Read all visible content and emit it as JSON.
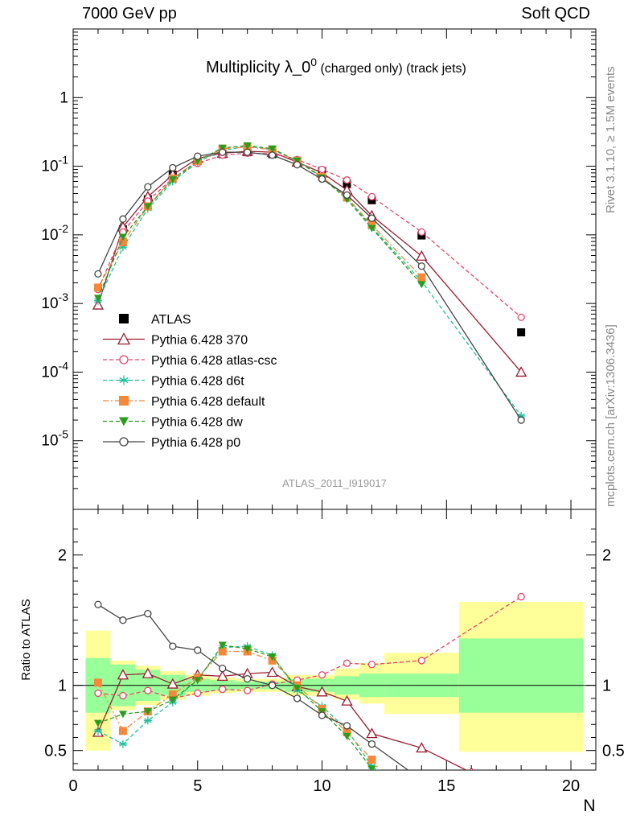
{
  "header": {
    "left": "7000 GeV pp",
    "right": "Soft QCD"
  },
  "side_labels": {
    "rivet": "Rivet 3.1.10, ≥ 1.5M events",
    "mcplots": "mcplots.cern.ch [arXiv:1306.3436]"
  },
  "chart_data": [
    {
      "panel": "main",
      "type": "line",
      "title_main": "Multiplicity λ_0",
      "title_sup": "0",
      "title_extra": " (charged only) (track jets)",
      "analysis_label": "ATLAS_2011_I919017",
      "y_scale": "log",
      "ylim": [
        1e-06,
        10
      ],
      "xlim": [
        0,
        21
      ],
      "y_ticks": [
        {
          "base": "10",
          "exp": "-5",
          "value": 1e-05
        },
        {
          "base": "10",
          "exp": "-4",
          "value": 0.0001
        },
        {
          "base": "10",
          "exp": "-3",
          "value": 0.001
        },
        {
          "base": "10",
          "exp": "-2",
          "value": 0.01
        },
        {
          "base": "10",
          "exp": "-1",
          "value": 0.1
        },
        {
          "base": "1",
          "exp": "",
          "value": 1
        }
      ],
      "legend_position": "lower-left",
      "series": [
        {
          "name": "ATLAS",
          "color": "#000000",
          "marker": "square",
          "line": "none",
          "x": [
            1,
            2,
            3,
            4,
            5,
            6,
            7,
            8,
            9,
            10,
            11,
            12,
            14,
            18
          ],
          "y": [
            0.0017,
            0.012,
            0.033,
            0.075,
            0.12,
            0.15,
            0.16,
            0.15,
            0.12,
            0.085,
            0.055,
            0.032,
            0.0098,
            0.00038
          ]
        },
        {
          "name": "Pythia 6.428 370",
          "color": "#9b1b30",
          "marker": "triangle-open",
          "line": "solid",
          "x": [
            1,
            2,
            3,
            4,
            5,
            6,
            7,
            8,
            9,
            10,
            11,
            12,
            14,
            18
          ],
          "y": [
            0.00095,
            0.013,
            0.036,
            0.075,
            0.13,
            0.155,
            0.165,
            0.16,
            0.115,
            0.08,
            0.045,
            0.019,
            0.0049,
            0.0001
          ]
        },
        {
          "name": "Pythia 6.428 atlas-csc",
          "color": "#e8456d",
          "marker": "circle-open",
          "line": "dashed",
          "x": [
            1,
            2,
            3,
            4,
            5,
            6,
            7,
            8,
            9,
            10,
            11,
            12,
            14,
            18
          ],
          "y": [
            0.0016,
            0.011,
            0.031,
            0.067,
            0.11,
            0.145,
            0.155,
            0.152,
            0.125,
            0.09,
            0.063,
            0.036,
            0.011,
            0.00063
          ]
        },
        {
          "name": "Pythia 6.428 d6t",
          "color": "#1fbf9f",
          "marker": "asterisk",
          "line": "dashed",
          "x": [
            1,
            2,
            3,
            4,
            5,
            6,
            7,
            8,
            9,
            10,
            11,
            12,
            14,
            18
          ],
          "y": [
            0.0011,
            0.0066,
            0.024,
            0.06,
            0.115,
            0.17,
            0.195,
            0.175,
            0.12,
            0.07,
            0.035,
            0.013,
            0.0021,
            2.3e-05
          ]
        },
        {
          "name": "Pythia 6.428 default",
          "color": "#f5883a",
          "marker": "square",
          "line": "dashdot",
          "x": [
            1,
            2,
            3,
            4,
            5,
            6,
            7,
            8,
            9,
            10,
            11,
            12,
            14
          ],
          "y": [
            0.0017,
            0.0078,
            0.026,
            0.066,
            0.12,
            0.18,
            0.19,
            0.175,
            0.12,
            0.07,
            0.035,
            0.014,
            0.0024
          ]
        },
        {
          "name": "Pythia 6.428 dw",
          "color": "#2a9d1f",
          "marker": "triangle-down",
          "line": "dashed",
          "x": [
            1,
            2,
            3,
            4,
            5,
            6,
            7,
            8,
            9,
            10,
            11,
            12,
            14
          ],
          "y": [
            0.0012,
            0.0093,
            0.026,
            0.064,
            0.12,
            0.185,
            0.2,
            0.18,
            0.12,
            0.068,
            0.033,
            0.0125,
            0.0019
          ]
        },
        {
          "name": "Pythia 6.428 p0",
          "color": "#444444",
          "marker": "circle-open",
          "line": "solid",
          "x": [
            1,
            2,
            3,
            4,
            5,
            6,
            7,
            8,
            9,
            10,
            11,
            12,
            14,
            18
          ],
          "y": [
            0.0027,
            0.017,
            0.05,
            0.095,
            0.14,
            0.16,
            0.16,
            0.145,
            0.105,
            0.065,
            0.038,
            0.0175,
            0.0035,
            2e-05
          ]
        }
      ]
    },
    {
      "panel": "ratio",
      "type": "line",
      "ylabel": "Ratio to ATLAS",
      "xlabel": "N",
      "ylim": [
        0.35,
        2.35
      ],
      "xlim": [
        0,
        21
      ],
      "x_ticks": [
        0,
        5,
        10,
        15,
        20
      ],
      "y_ticks": [
        0.5,
        1,
        2
      ],
      "bands": {
        "x_low": [
          0.5,
          1.5,
          2.5,
          3.5,
          4.5,
          5.5,
          6.5,
          7.5,
          8.5,
          9.5,
          10.5,
          11.5,
          12.5,
          15.5
        ],
        "x_high": [
          1.5,
          2.5,
          3.5,
          4.5,
          5.5,
          6.5,
          7.5,
          8.5,
          9.5,
          10.5,
          11.5,
          12.5,
          15.5,
          20.5
        ],
        "stat_low": [
          0.79,
          0.84,
          0.88,
          0.92,
          0.95,
          0.96,
          0.97,
          0.97,
          0.95,
          0.95,
          0.93,
          0.91,
          0.91,
          0.79
        ],
        "stat_high": [
          1.21,
          1.16,
          1.12,
          1.08,
          1.05,
          1.04,
          1.03,
          1.03,
          1.05,
          1.05,
          1.07,
          1.09,
          1.09,
          1.36
        ],
        "total_low": [
          0.5,
          0.81,
          0.85,
          0.89,
          0.92,
          0.94,
          0.95,
          0.95,
          0.92,
          0.92,
          0.89,
          0.86,
          0.78,
          0.49
        ],
        "total_high": [
          1.42,
          1.19,
          1.15,
          1.11,
          1.08,
          1.06,
          1.05,
          1.05,
          1.08,
          1.08,
          1.13,
          1.17,
          1.25,
          1.64
        ],
        "stat_color": "#99ff99",
        "total_color": "#ffff99"
      },
      "series": [
        {
          "name": "Pythia 6.428 370",
          "x": [
            1,
            2,
            3,
            4,
            5,
            6,
            7,
            8,
            9,
            10,
            11,
            12,
            14,
            16
          ],
          "y": [
            0.64,
            1.08,
            1.09,
            1.01,
            1.08,
            1.07,
            1.09,
            1.1,
            0.99,
            0.95,
            0.88,
            0.63,
            0.52,
            0.33
          ]
        },
        {
          "name": "Pythia 6.428 atlas-csc",
          "x": [
            1,
            2,
            3,
            4,
            5,
            6,
            7,
            8,
            9,
            10,
            11,
            12,
            14,
            18
          ],
          "y": [
            0.94,
            0.92,
            0.96,
            0.9,
            0.94,
            0.97,
            0.96,
            1.01,
            1.04,
            1.08,
            1.17,
            1.16,
            1.19,
            1.68
          ]
        },
        {
          "name": "Pythia 6.428 d6t",
          "x": [
            1,
            2,
            3,
            4,
            5,
            6,
            7,
            8,
            9,
            10,
            11,
            12,
            12.5
          ],
          "y": [
            0.65,
            0.55,
            0.73,
            0.87,
            1.05,
            1.29,
            1.3,
            1.23,
            0.96,
            0.84,
            0.66,
            0.38,
            0.3
          ]
        },
        {
          "name": "Pythia 6.428 default",
          "x": [
            1,
            2,
            3,
            4,
            5,
            6,
            7,
            8,
            9,
            10,
            11,
            12,
            12.5
          ],
          "y": [
            1.02,
            0.65,
            0.8,
            0.93,
            1.06,
            1.26,
            1.26,
            1.19,
            1.0,
            0.82,
            0.64,
            0.43,
            0.3
          ]
        },
        {
          "name": "Pythia 6.428 dw",
          "x": [
            1,
            2,
            3,
            4,
            5,
            6,
            7,
            8,
            9,
            10,
            11,
            12,
            12.4
          ],
          "y": [
            0.71,
            0.78,
            0.8,
            0.89,
            1.04,
            1.31,
            1.28,
            1.22,
            0.98,
            0.8,
            0.61,
            0.36,
            0.3
          ]
        },
        {
          "name": "Pythia 6.428 p0",
          "x": [
            1,
            2,
            3,
            4,
            5,
            6,
            7,
            8,
            9,
            10,
            11,
            12,
            13.6
          ],
          "y": [
            1.62,
            1.5,
            1.55,
            1.3,
            1.27,
            1.13,
            1.05,
            1.0,
            0.9,
            0.77,
            0.69,
            0.55,
            0.33
          ]
        }
      ]
    }
  ]
}
